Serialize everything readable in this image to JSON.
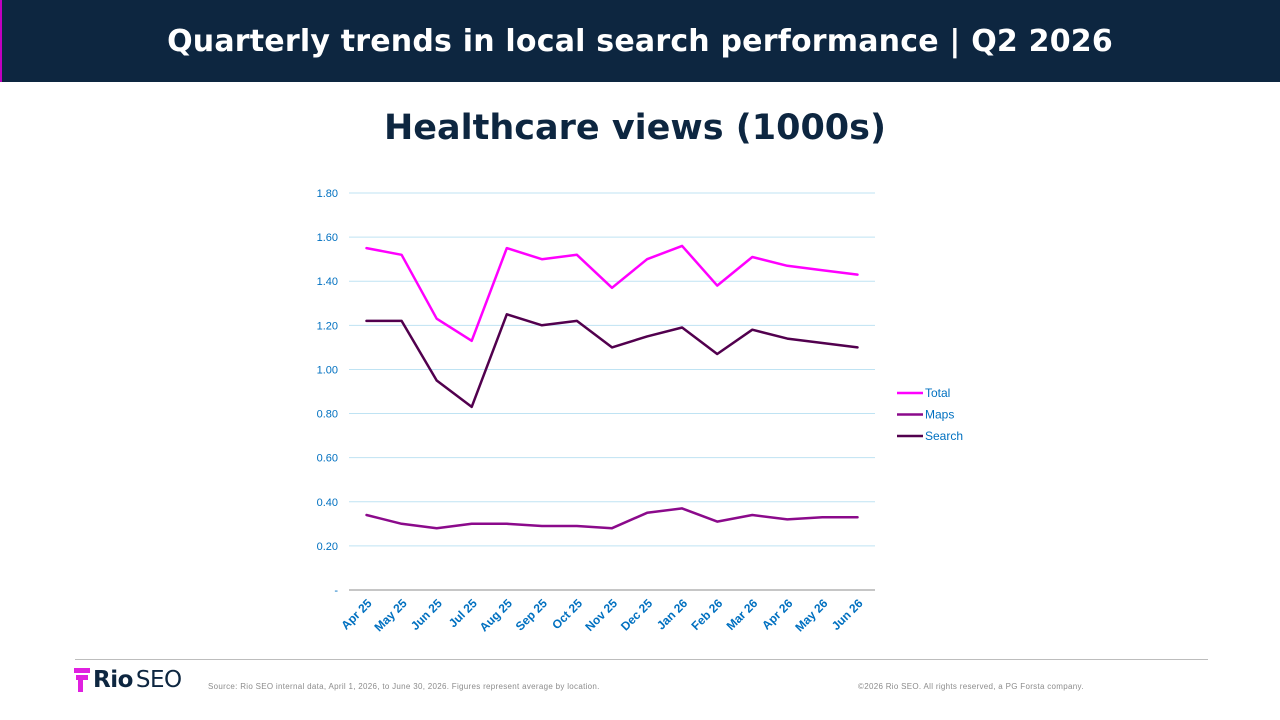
{
  "header": {
    "title": "Quarterly trends in local search performance | Q2 2026"
  },
  "footer": {
    "logo_bold": "Rio",
    "logo_light": "SEO",
    "source": "Source: Rio SEO internal data, April 1, 2026, to June 30, 2026. Figures represent average by location.",
    "copyright": "©2026 Rio SEO. All rights reserved, a PG Forsta company."
  },
  "colors": {
    "header_bg": "#0d2640",
    "accent": "#e020e0",
    "axis_label": "#0070c0"
  },
  "chart_data": {
    "type": "line",
    "title": "Healthcare views (1000s)",
    "xlabel": "",
    "ylabel": "",
    "categories": [
      "Apr 25",
      "May 25",
      "Jun 25",
      "Jul 25",
      "Aug 25",
      "Sep 25",
      "Oct 25",
      "Nov 25",
      "Dec 25",
      "Jan 26",
      "Feb 26",
      "Mar 26",
      "Apr 26",
      "May 26",
      "Jun 26"
    ],
    "ylim": [
      0,
      1.8
    ],
    "yticks": [
      0,
      0.2,
      0.4,
      0.6,
      0.8,
      1.0,
      1.2,
      1.4,
      1.6,
      1.8
    ],
    "ytick_labels": [
      "-",
      "0.20",
      "0.40",
      "0.60",
      "0.80",
      "1.00",
      "1.20",
      "1.40",
      "1.60",
      "1.80"
    ],
    "grid": true,
    "legend_position": "right",
    "series": [
      {
        "name": "Total",
        "color": "#ff00ff",
        "values": [
          1.55,
          1.52,
          1.23,
          1.13,
          1.55,
          1.5,
          1.52,
          1.37,
          1.5,
          1.56,
          1.38,
          1.51,
          1.47,
          1.45,
          1.43
        ]
      },
      {
        "name": "Maps",
        "color": "#8b0a8b",
        "values": [
          0.34,
          0.3,
          0.28,
          0.3,
          0.3,
          0.29,
          0.29,
          0.28,
          0.35,
          0.37,
          0.31,
          0.34,
          0.32,
          0.33,
          0.33
        ]
      },
      {
        "name": "Search",
        "color": "#52004e",
        "values": [
          1.22,
          1.22,
          0.95,
          0.83,
          1.25,
          1.2,
          1.22,
          1.1,
          1.15,
          1.19,
          1.07,
          1.18,
          1.14,
          1.12,
          1.1
        ]
      }
    ]
  }
}
